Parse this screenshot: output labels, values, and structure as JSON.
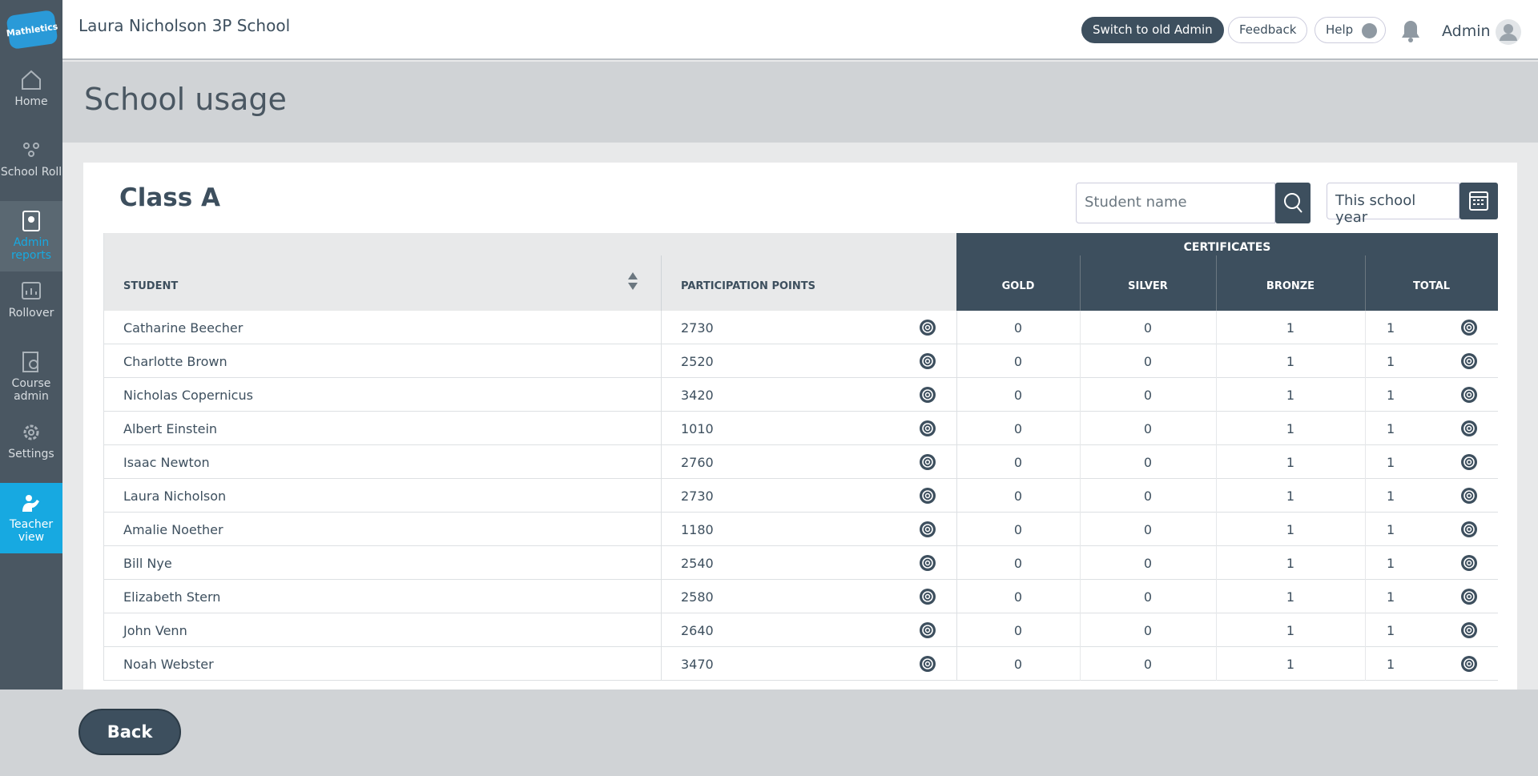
{
  "brand": "Mathletics",
  "sidebar": [
    "Home",
    "School Roll",
    "Admin reports",
    "Rollover",
    "Course admin",
    "Settings",
    "Teacher view"
  ],
  "header": {
    "school": "Laura Nicholson 3P School",
    "buttons": [
      "Switch to old Admin",
      "Feedback",
      "Help"
    ],
    "user": "Admin"
  },
  "page": {
    "title": "School usage",
    "back": "Back"
  },
  "panel": {
    "class": "Class A",
    "search_placeholder": "Student name",
    "period": "This school year"
  },
  "table": {
    "columns": [
      "STUDENT",
      "PARTICIPATION POINTS"
    ],
    "group": "CERTIFICATES",
    "cert_columns": [
      "GOLD",
      "SILVER",
      "BRONZE",
      "TOTAL"
    ],
    "rows": [
      [
        "Catharine Beecher",
        2730,
        0,
        0,
        1,
        1
      ],
      [
        "Charlotte Brown",
        2520,
        0,
        0,
        1,
        1
      ],
      [
        "Nicholas Copernicus",
        3420,
        0,
        0,
        1,
        1
      ],
      [
        "Albert Einstein",
        1010,
        0,
        0,
        1,
        1
      ],
      [
        "Isaac Newton",
        2760,
        0,
        0,
        1,
        1
      ],
      [
        "Laura Nicholson",
        2730,
        0,
        0,
        1,
        1
      ],
      [
        "Amalie Noether",
        1180,
        0,
        0,
        1,
        1
      ],
      [
        "Bill Nye",
        2540,
        0,
        0,
        1,
        1
      ],
      [
        "Elizabeth Stern",
        2580,
        0,
        0,
        1,
        1
      ],
      [
        "John Venn",
        2640,
        0,
        0,
        1,
        1
      ],
      [
        "Noah Webster",
        3470,
        0,
        0,
        1,
        1
      ]
    ]
  }
}
